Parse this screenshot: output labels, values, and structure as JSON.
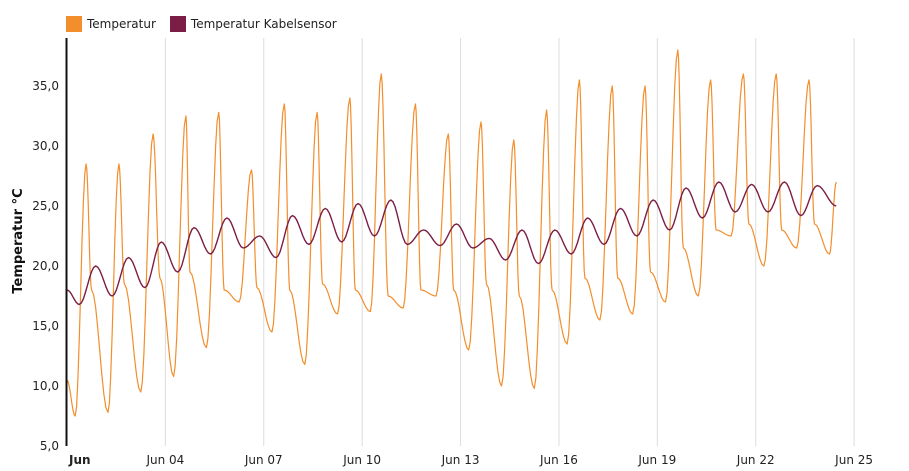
{
  "chart_data": {
    "type": "line",
    "title": "",
    "ylabel": "Temperatur °C",
    "xlabel": "",
    "ylim": [
      5,
      39
    ],
    "xlim": [
      "2024-06-01",
      "2024-06-25"
    ],
    "grid": {
      "vertical": true,
      "horizontal": false
    },
    "legend_position": "top-left",
    "y_ticks": [
      "5,0",
      "10,0",
      "15,0",
      "20,0",
      "25,0",
      "30,0",
      "35,0"
    ],
    "x_ticks": [
      {
        "label": "Jun",
        "bold": true
      },
      {
        "label": "Jun 04",
        "bold": false
      },
      {
        "label": "Jun 07",
        "bold": false
      },
      {
        "label": "Jun 10",
        "bold": false
      },
      {
        "label": "Jun 13",
        "bold": false
      },
      {
        "label": "Jun 16",
        "bold": false
      },
      {
        "label": "Jun 19",
        "bold": false
      },
      {
        "label": "Jun 22",
        "bold": false
      },
      {
        "label": "Jun 25",
        "bold": false
      }
    ],
    "series": [
      {
        "name": "Temperatur",
        "color": "#f28e2b",
        "x": [
          "2024-06-01 00:00",
          "2024-06-01 06:00",
          "2024-06-01 14:00",
          "2024-06-01 18:00",
          "2024-06-02 06:00",
          "2024-06-02 14:00",
          "2024-06-02 18:00",
          "2024-06-03 06:00",
          "2024-06-03 15:00",
          "2024-06-03 20:00",
          "2024-06-04 06:00",
          "2024-06-04 15:00",
          "2024-06-04 18:00",
          "2024-06-05 06:00",
          "2024-06-05 15:00",
          "2024-06-05 19:00",
          "2024-06-06 06:00",
          "2024-06-06 15:00",
          "2024-06-06 19:00",
          "2024-06-07 06:00",
          "2024-06-07 15:00",
          "2024-06-07 19:00",
          "2024-06-08 06:00",
          "2024-06-08 15:00",
          "2024-06-08 19:00",
          "2024-06-09 06:00",
          "2024-06-09 15:00",
          "2024-06-09 19:00",
          "2024-06-10 06:00",
          "2024-06-10 14:00",
          "2024-06-10 19:00",
          "2024-06-11 06:00",
          "2024-06-11 15:00",
          "2024-06-11 19:00",
          "2024-06-12 06:00",
          "2024-06-12 15:00",
          "2024-06-12 19:00",
          "2024-06-13 06:00",
          "2024-06-13 15:00",
          "2024-06-13 19:00",
          "2024-06-14 06:00",
          "2024-06-14 15:00",
          "2024-06-14 19:00",
          "2024-06-15 06:00",
          "2024-06-15 15:00",
          "2024-06-15 19:00",
          "2024-06-16 06:00",
          "2024-06-16 15:00",
          "2024-06-16 19:00",
          "2024-06-17 06:00",
          "2024-06-17 15:00",
          "2024-06-17 19:00",
          "2024-06-18 06:00",
          "2024-06-18 15:00",
          "2024-06-18 19:00",
          "2024-06-19 06:00",
          "2024-06-19 15:00",
          "2024-06-19 19:00",
          "2024-06-20 06:00",
          "2024-06-20 15:00",
          "2024-06-20 19:00",
          "2024-06-21 06:00",
          "2024-06-21 15:00",
          "2024-06-21 19:00",
          "2024-06-22 06:00",
          "2024-06-22 15:00",
          "2024-06-22 19:00",
          "2024-06-23 06:00",
          "2024-06-23 15:00",
          "2024-06-23 19:00",
          "2024-06-24 06:00",
          "2024-06-24 11:00"
        ],
        "y": [
          10.5,
          7.5,
          28.5,
          18.0,
          7.8,
          28.5,
          18.5,
          9.5,
          31.0,
          19.0,
          10.8,
          32.5,
          19.5,
          13.2,
          32.8,
          18.0,
          17.0,
          28.0,
          18.2,
          14.5,
          33.5,
          18.0,
          11.8,
          32.8,
          18.5,
          16.0,
          34.0,
          18.0,
          16.2,
          36.0,
          17.5,
          16.5,
          33.5,
          18.0,
          17.5,
          31.0,
          18.0,
          13.0,
          32.0,
          18.5,
          10.0,
          30.5,
          17.5,
          9.8,
          33.0,
          18.0,
          13.5,
          35.5,
          19.0,
          15.5,
          35.0,
          19.0,
          16.0,
          35.0,
          19.5,
          17.0,
          38.0,
          21.5,
          17.5,
          35.5,
          23.0,
          22.5,
          36.0,
          23.5,
          20.0,
          36.0,
          23.0,
          21.5,
          35.5,
          23.5,
          21.0,
          27.0
        ]
      },
      {
        "name": "Temperatur Kabelsensor",
        "color": "#7b1e45",
        "x": [
          "2024-06-01 00:00",
          "2024-06-01 09:00",
          "2024-06-01 21:00",
          "2024-06-02 09:00",
          "2024-06-02 21:00",
          "2024-06-03 09:00",
          "2024-06-03 21:00",
          "2024-06-04 09:00",
          "2024-06-04 21:00",
          "2024-06-05 09:00",
          "2024-06-05 21:00",
          "2024-06-06 09:00",
          "2024-06-06 21:00",
          "2024-06-07 09:00",
          "2024-06-07 21:00",
          "2024-06-08 09:00",
          "2024-06-08 21:00",
          "2024-06-09 09:00",
          "2024-06-09 21:00",
          "2024-06-10 09:00",
          "2024-06-10 21:00",
          "2024-06-11 09:00",
          "2024-06-11 21:00",
          "2024-06-12 09:00",
          "2024-06-12 21:00",
          "2024-06-13 09:00",
          "2024-06-13 21:00",
          "2024-06-14 09:00",
          "2024-06-14 21:00",
          "2024-06-15 09:00",
          "2024-06-15 21:00",
          "2024-06-16 09:00",
          "2024-06-16 21:00",
          "2024-06-17 09:00",
          "2024-06-17 21:00",
          "2024-06-18 09:00",
          "2024-06-18 21:00",
          "2024-06-19 09:00",
          "2024-06-19 21:00",
          "2024-06-20 09:00",
          "2024-06-20 21:00",
          "2024-06-21 09:00",
          "2024-06-21 21:00",
          "2024-06-22 09:00",
          "2024-06-22 21:00",
          "2024-06-23 09:00",
          "2024-06-23 21:00",
          "2024-06-24 11:00"
        ],
        "y": [
          18.0,
          16.8,
          20.0,
          17.5,
          20.7,
          18.2,
          22.0,
          19.5,
          23.2,
          21.0,
          24.0,
          21.5,
          22.5,
          20.7,
          24.2,
          21.8,
          24.8,
          22.0,
          25.2,
          22.5,
          25.5,
          21.8,
          23.0,
          21.7,
          23.5,
          21.5,
          22.3,
          20.5,
          23.0,
          20.2,
          23.0,
          21.0,
          24.0,
          21.8,
          24.8,
          22.5,
          25.5,
          23.0,
          26.5,
          24.0,
          27.0,
          24.5,
          26.8,
          24.5,
          27.0,
          24.2,
          26.7,
          25.0
        ]
      }
    ]
  }
}
